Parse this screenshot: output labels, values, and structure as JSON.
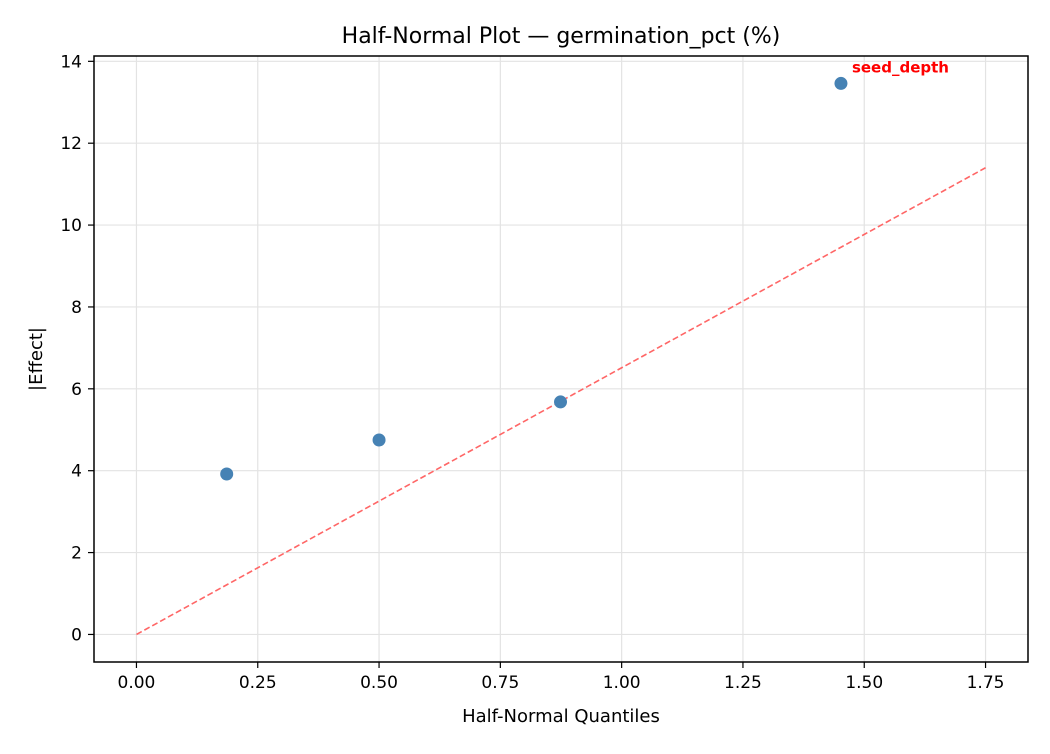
{
  "chart_data": {
    "type": "scatter",
    "title": "Half-Normal Plot — germination_pct (%)",
    "xlabel": "Half-Normal Quantiles",
    "ylabel": "|Effect|",
    "xlim": [
      -0.0875,
      1.8375
    ],
    "ylim": [
      -0.673,
      14.13
    ],
    "xticks": [
      0.0,
      0.25,
      0.5,
      0.75,
      1.0,
      1.25,
      1.5,
      1.75
    ],
    "xtick_labels": [
      "0.00",
      "0.25",
      "0.50",
      "0.75",
      "1.00",
      "1.25",
      "1.50",
      "1.75"
    ],
    "yticks": [
      0,
      2,
      4,
      6,
      8,
      10,
      12,
      14
    ],
    "ytick_labels": [
      "0",
      "2",
      "4",
      "6",
      "8",
      "10",
      "12",
      "14"
    ],
    "grid": true,
    "points": [
      {
        "x": 0.186,
        "y": 3.92
      },
      {
        "x": 0.5,
        "y": 4.75
      },
      {
        "x": 0.874,
        "y": 5.68
      },
      {
        "x": 1.452,
        "y": 13.46
      }
    ],
    "reference_line": {
      "x": [
        0,
        1.75
      ],
      "y": [
        0,
        11.4
      ],
      "style": "dashed"
    },
    "annotations": [
      {
        "text": "seed_depth",
        "x": 1.452,
        "y": 13.46
      }
    ],
    "colors": {
      "points": "#4682b4",
      "reference_line": "#ff6666",
      "annotation": "#ff0000"
    }
  }
}
